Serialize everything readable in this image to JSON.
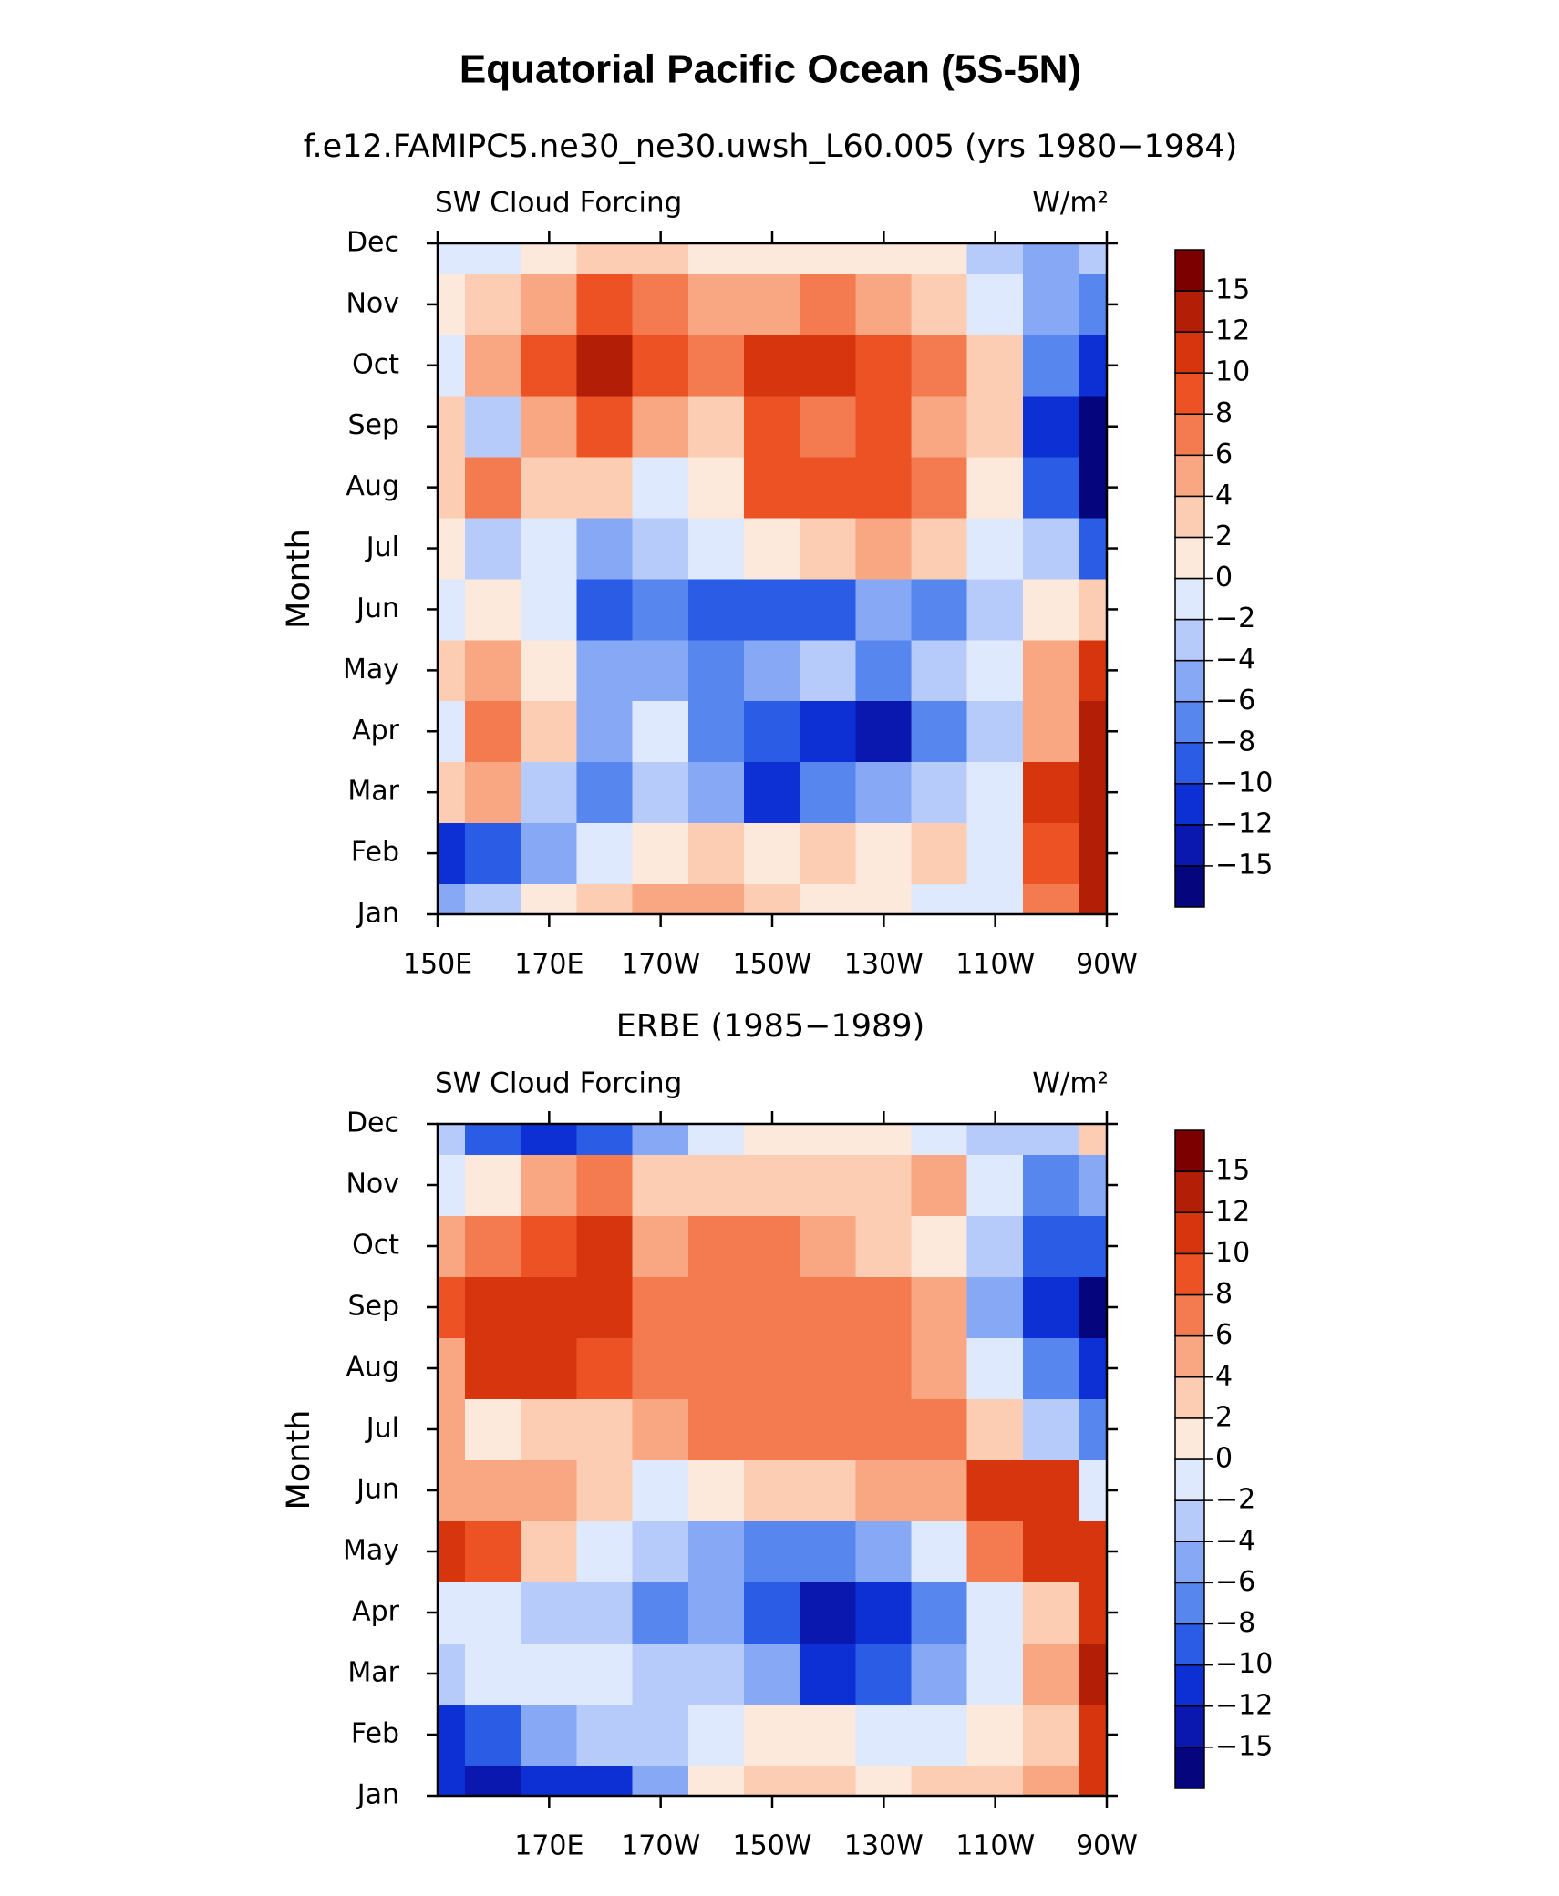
{
  "title": "Equatorial Pacific Ocean (5S-5N)",
  "chart_data": [
    {
      "type": "contour",
      "title": "f.e12.FAMIPC5.ne30_ne30.uwsh_L60.005 (yrs 1980−1984)",
      "left_label": "SW Cloud Forcing",
      "right_label": "W/m²",
      "ylabel": "Month",
      "categories": [
        "Jan",
        "Feb",
        "Mar",
        "Apr",
        "May",
        "Jun",
        "Jul",
        "Aug",
        "Sep",
        "Oct",
        "Nov",
        "Dec"
      ],
      "x": [
        150,
        160,
        170,
        180,
        190,
        200,
        210,
        220,
        230,
        240,
        250,
        260,
        270
      ],
      "xlim": [
        150,
        270
      ],
      "xticks": [
        {
          "value": 150,
          "label": "150E"
        },
        {
          "value": 170,
          "label": "170E"
        },
        {
          "value": 190,
          "label": "170W"
        },
        {
          "value": 210,
          "label": "150W"
        },
        {
          "value": 230,
          "label": "130W"
        },
        {
          "value": 250,
          "label": "110W"
        },
        {
          "value": 270,
          "label": "90W"
        }
      ],
      "z": [
        [
          -6,
          -3,
          1,
          2,
          4,
          5,
          2,
          1,
          1,
          -1,
          -2,
          6,
          12
        ],
        [
          -12,
          -10,
          -6,
          -2,
          1,
          2,
          0,
          2,
          1,
          2,
          -1,
          8,
          12
        ],
        [
          2,
          4,
          -4,
          -8,
          -3,
          -5,
          -11,
          -8,
          -6,
          -3,
          -1,
          10,
          14
        ],
        [
          -2,
          7,
          2,
          -6,
          -1,
          -8,
          -10,
          -12,
          -14,
          -8,
          -4,
          4,
          14
        ],
        [
          2,
          4,
          1,
          -6,
          -5,
          -7,
          -6,
          -4,
          -7,
          -3,
          -1,
          5,
          10
        ],
        [
          -2,
          0,
          -2,
          -10,
          -7,
          -10,
          -10,
          -9,
          -6,
          -8,
          -3,
          1,
          2
        ],
        [
          1,
          -3,
          -1,
          -6,
          -4,
          -2,
          1,
          2,
          4,
          2,
          -1,
          -4,
          -10
        ],
        [
          2,
          6,
          2,
          2,
          -2,
          1,
          8,
          8,
          8,
          6,
          1,
          -10,
          -16
        ],
        [
          2,
          -3,
          4,
          8,
          4,
          3,
          9,
          7,
          8,
          5,
          2,
          -12,
          -16
        ],
        [
          -1,
          4,
          9,
          13,
          8,
          6,
          10,
          10,
          8,
          6,
          2,
          -8,
          -12
        ],
        [
          1,
          2,
          4,
          8,
          6,
          4,
          5,
          6,
          4,
          2,
          -2,
          -6,
          -8
        ],
        [
          -1,
          -2,
          1,
          2,
          2,
          1,
          1,
          1,
          1,
          1,
          -3,
          -6,
          -3
        ]
      ],
      "levels": [
        {
          "value": -15,
          "label": "−15"
        },
        {
          "value": -12,
          "label": "−12"
        },
        {
          "value": -10,
          "label": "−10"
        },
        {
          "value": -8,
          "label": "−8"
        },
        {
          "value": -6,
          "label": "−6"
        },
        {
          "value": -4,
          "label": "−4"
        },
        {
          "value": -2,
          "label": "−2"
        },
        0,
        2,
        4,
        6,
        8,
        10,
        12,
        15
      ],
      "colors": [
        "#05057e",
        "#0a18b0",
        "#0c30d4",
        "#2a5ce6",
        "#5686ee",
        "#87a9f5",
        "#b7cbfb",
        "#dfe9fd",
        "#fde8dc",
        "#fccdb3",
        "#f9a682",
        "#f47b50",
        "#ed5224",
        "#d7350e",
        "#b21e06",
        "#7d0000"
      ]
    },
    {
      "type": "contour",
      "title": "ERBE (1985−1989)",
      "left_label": "SW Cloud Forcing",
      "right_label": "W/m²",
      "ylabel": "Month",
      "categories": [
        "Jan",
        "Feb",
        "Mar",
        "Apr",
        "May",
        "Jun",
        "Jul",
        "Aug",
        "Sep",
        "Oct",
        "Nov",
        "Dec"
      ],
      "x": [
        150,
        160,
        170,
        180,
        190,
        200,
        210,
        220,
        230,
        240,
        250,
        260,
        270
      ],
      "xlim": [
        150,
        270
      ],
      "xticks": [
        {
          "value": 170,
          "label": "170E"
        },
        {
          "value": 190,
          "label": "170W"
        },
        {
          "value": 210,
          "label": "150W"
        },
        {
          "value": 230,
          "label": "130W"
        },
        {
          "value": 250,
          "label": "110W"
        },
        {
          "value": 270,
          "label": "90W"
        }
      ],
      "z": [
        [
          -12,
          -14,
          -12,
          -12,
          -6,
          1,
          2,
          2,
          1,
          2,
          2,
          4,
          10
        ],
        [
          -12,
          -10,
          -6,
          -4,
          -4,
          -2,
          1,
          1,
          -1,
          -2,
          0,
          2,
          10
        ],
        [
          -4,
          -2,
          -2,
          -2,
          -4,
          -4,
          -6,
          -12,
          -10,
          -6,
          -2,
          4,
          12
        ],
        [
          -2,
          -2,
          -4,
          -4,
          -8,
          -6,
          -10,
          -14,
          -12,
          -8,
          -2,
          2,
          10
        ],
        [
          10,
          8,
          2,
          -2,
          -4,
          -6,
          -8,
          -8,
          -6,
          -2,
          6,
          10,
          10
        ],
        [
          5,
          4,
          4,
          2,
          -2,
          1,
          2,
          2,
          4,
          4,
          10,
          10,
          -2
        ],
        [
          4,
          1,
          3,
          2,
          4,
          6,
          6,
          6,
          6,
          6,
          2,
          -4,
          -8
        ],
        [
          5,
          11,
          10,
          8,
          6,
          6,
          6,
          6,
          7,
          4,
          -2,
          -8,
          -12
        ],
        [
          8,
          11,
          11,
          10,
          6,
          6,
          6,
          6,
          6,
          4,
          -6,
          -12,
          -16
        ],
        [
          5,
          6,
          8,
          10,
          4,
          6,
          6,
          4,
          2,
          1,
          -4,
          -10,
          -10
        ],
        [
          -2,
          1,
          4,
          6,
          2,
          3,
          2,
          2,
          2,
          4,
          -1,
          -8,
          -6
        ],
        [
          -4,
          -10,
          -12,
          -10,
          -5,
          -1,
          1,
          1,
          1,
          -1,
          -3,
          -3,
          2
        ]
      ],
      "levels": [
        {
          "value": -15,
          "label": "−15"
        },
        {
          "value": -12,
          "label": "−12"
        },
        {
          "value": -10,
          "label": "−10"
        },
        {
          "value": -8,
          "label": "−8"
        },
        {
          "value": -6,
          "label": "−6"
        },
        {
          "value": -4,
          "label": "−4"
        },
        {
          "value": -2,
          "label": "−2"
        },
        0,
        2,
        4,
        6,
        8,
        10,
        12,
        15
      ],
      "colors": [
        "#05057e",
        "#0a18b0",
        "#0c30d4",
        "#2a5ce6",
        "#5686ee",
        "#87a9f5",
        "#b7cbfb",
        "#dfe9fd",
        "#fde8dc",
        "#fccdb3",
        "#f9a682",
        "#f47b50",
        "#ed5224",
        "#d7350e",
        "#b21e06",
        "#7d0000"
      ]
    }
  ]
}
